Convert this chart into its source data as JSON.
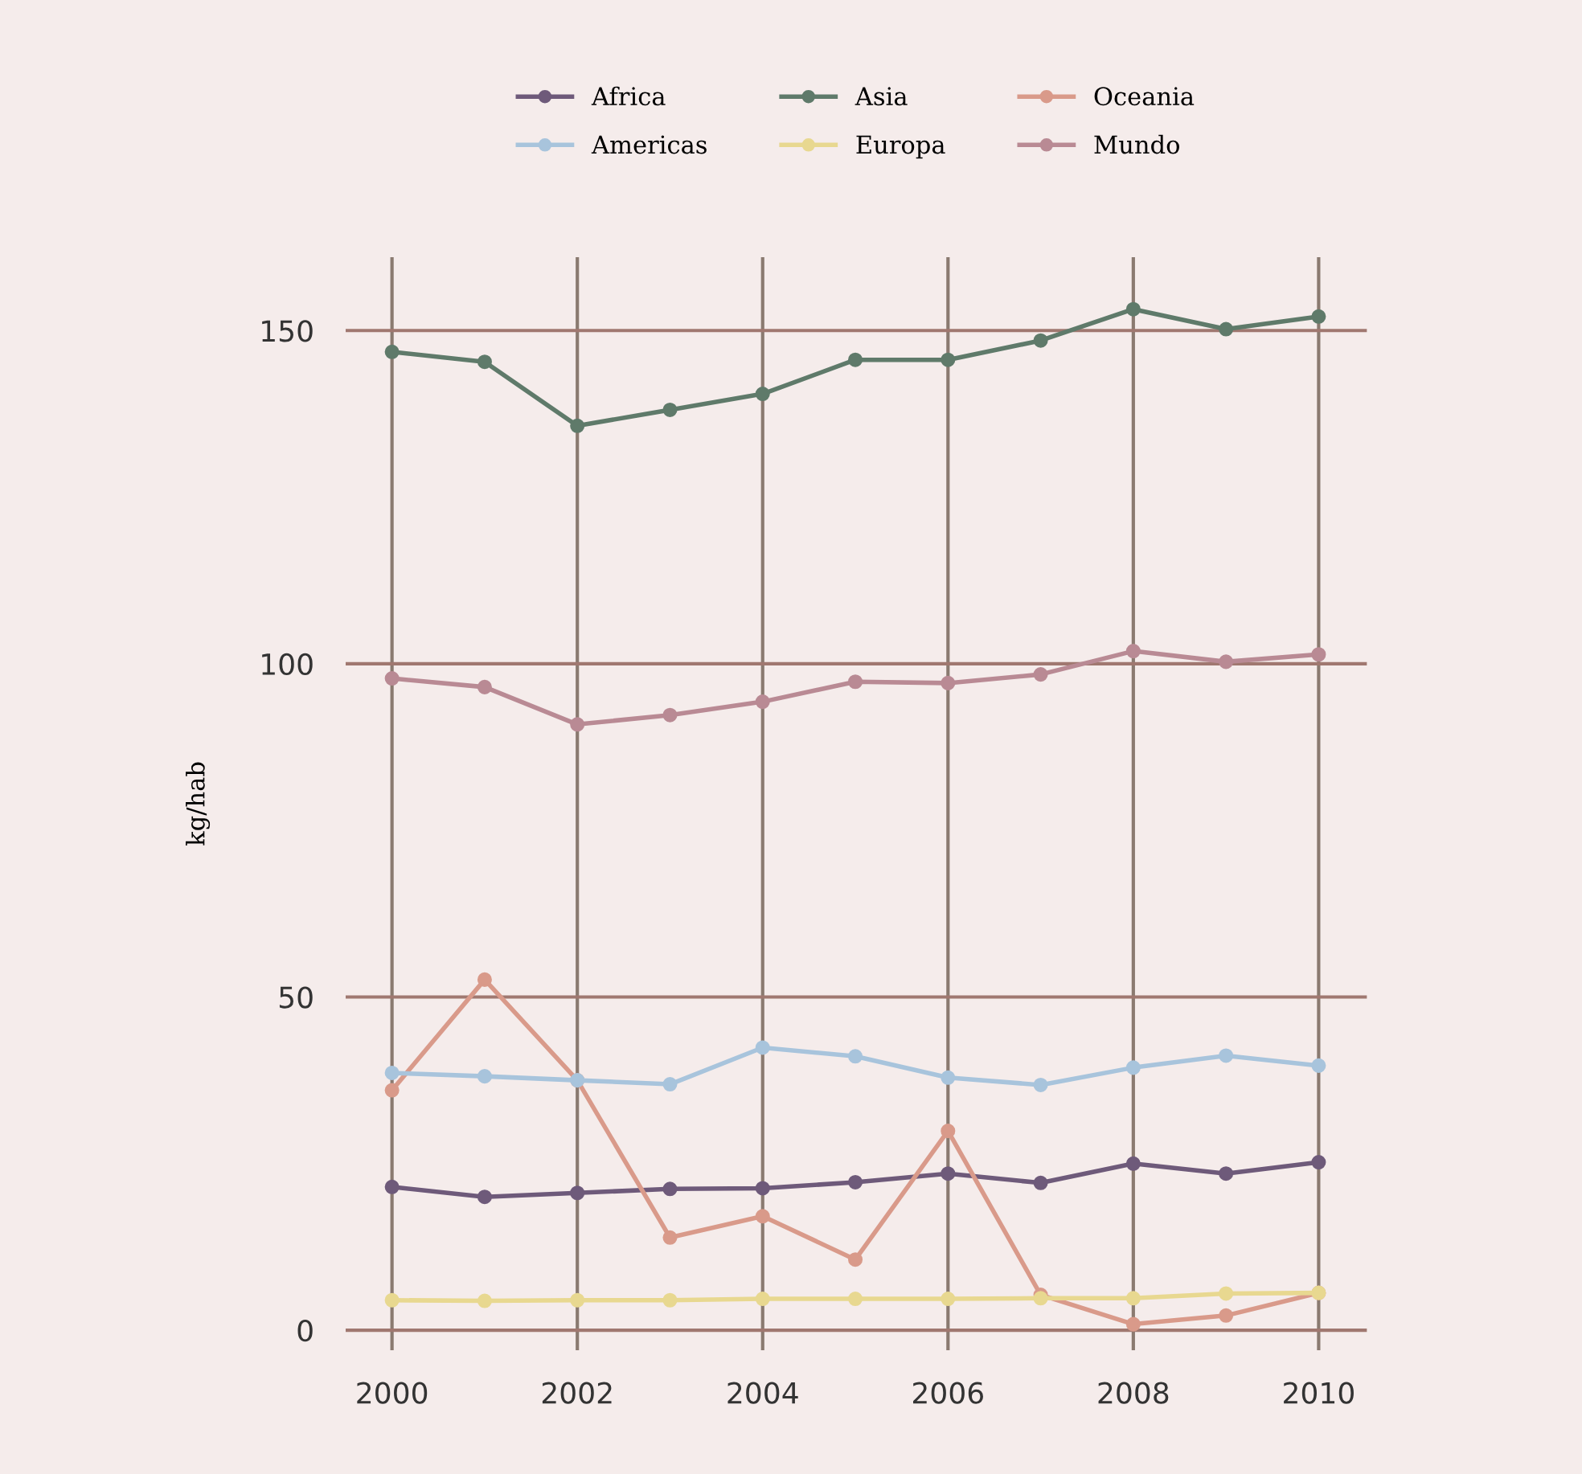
{
  "chart_data": {
    "type": "line",
    "ylabel": "kg/hab",
    "x": [
      2000,
      2001,
      2002,
      2003,
      2004,
      2005,
      2006,
      2007,
      2008,
      2009,
      2010
    ],
    "series": [
      {
        "name": "Africa",
        "color": "#6e5a7a",
        "values": [
          21.5,
          20.0,
          20.6,
          21.2,
          21.3,
          22.2,
          23.5,
          22.1,
          25.0,
          23.5,
          25.2
        ]
      },
      {
        "name": "Asia",
        "color": "#5f7a6a",
        "values": [
          146.8,
          145.3,
          135.7,
          138.1,
          140.5,
          145.6,
          145.6,
          148.5,
          153.2,
          150.2,
          152.1
        ]
      },
      {
        "name": "Oceania",
        "color": "#d99a8a",
        "values": [
          36.0,
          52.6,
          37.5,
          13.9,
          17.1,
          10.6,
          29.9,
          5.3,
          0.9,
          2.2,
          5.6
        ]
      },
      {
        "name": "Americas",
        "color": "#a8c4dc",
        "values": [
          38.6,
          38.1,
          37.5,
          36.9,
          42.4,
          41.1,
          37.9,
          36.8,
          39.4,
          41.2,
          39.7
        ]
      },
      {
        "name": "Europa",
        "color": "#e8d890",
        "values": [
          4.5,
          4.4,
          4.5,
          4.5,
          4.7,
          4.7,
          4.7,
          4.8,
          4.8,
          5.5,
          5.6
        ]
      },
      {
        "name": "Mundo",
        "color": "#b98a94",
        "values": [
          97.8,
          96.5,
          90.9,
          92.3,
          94.3,
          97.3,
          97.1,
          98.4,
          101.9,
          100.3,
          101.4
        ]
      }
    ],
    "xlim": [
      1999.5,
      2010.52
    ],
    "ylim": [
      -3,
      161
    ],
    "xticks": [
      2000,
      2002,
      2004,
      2006,
      2008,
      2010
    ],
    "yticks": [
      0,
      50,
      100,
      150
    ],
    "grid": true,
    "legend": "top",
    "marker": "circle",
    "line_style": "solid"
  }
}
